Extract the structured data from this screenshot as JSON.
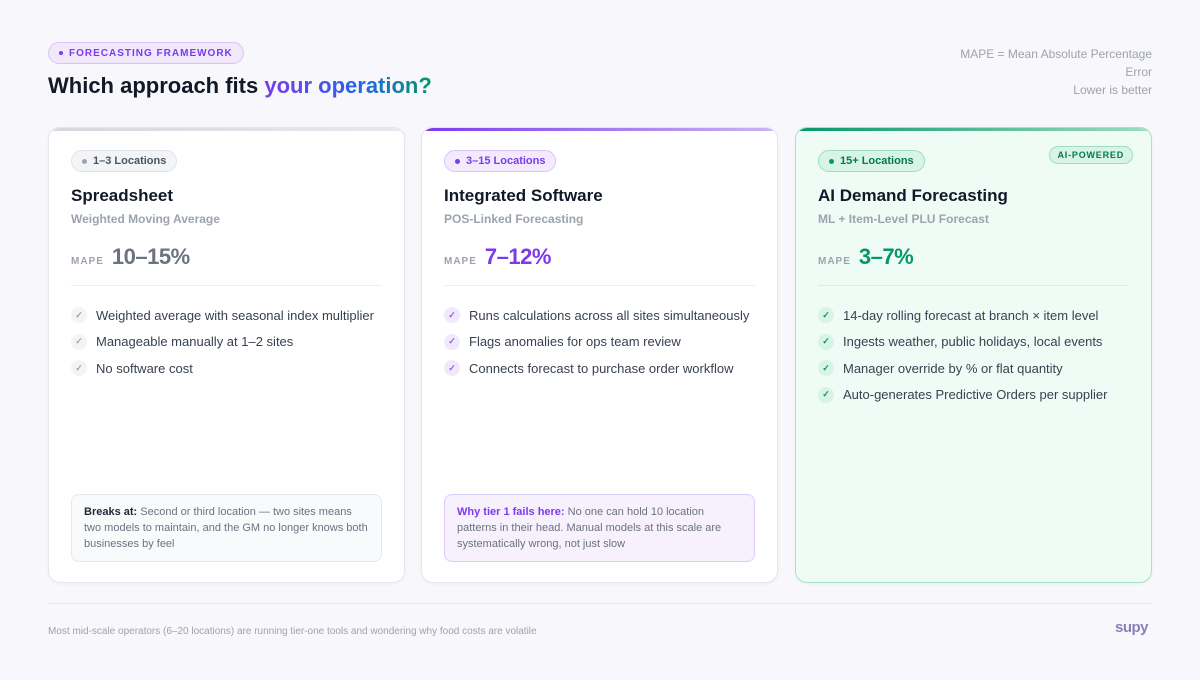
{
  "header": {
    "eyebrow": "FORECASTING FRAMEWORK",
    "title_main": "Which approach fits ",
    "title_accent": "your operation?",
    "note_line1": "MAPE = Mean Absolute Percentage Error",
    "note_line2": "Lower is better"
  },
  "cards": [
    {
      "tag": "1–3 Locations",
      "title": "Spreadsheet",
      "subtitle": "Weighted Moving Average",
      "mape_label": "MAPE",
      "mape_value": "10–15%",
      "features": [
        "Weighted average with seasonal index multiplier",
        "Manageable manually at 1–2 sites",
        "No software cost"
      ],
      "note_lead": "Breaks at:",
      "note_body": " Second or third location — two sites means two models to maintain, and the GM no longer knows both businesses by feel"
    },
    {
      "tag": "3–15 Locations",
      "title": "Integrated Software",
      "subtitle": "POS-Linked Forecasting",
      "mape_label": "MAPE",
      "mape_value": "7–12%",
      "features": [
        "Runs calculations across all sites simultaneously",
        "Flags anomalies for ops team review",
        "Connects forecast to purchase order workflow"
      ],
      "note_lead": "Why tier 1 fails here:",
      "note_body": " No one can hold 10 location patterns in their head. Manual models at this scale are systematically wrong, not just slow"
    },
    {
      "tag": "15+ Locations",
      "badge": "AI-POWERED",
      "title": "AI Demand Forecasting",
      "subtitle": "ML + Item-Level PLU Forecast",
      "mape_label": "MAPE",
      "mape_value": "3–7%",
      "features": [
        "14-day rolling forecast at branch × item level",
        "Ingests weather, public holidays, local events",
        "Manager override by % or flat quantity",
        "Auto-generates Predictive Orders per supplier"
      ]
    }
  ],
  "icons": {
    "check": "check-icon",
    "dot": "dot-icon"
  },
  "footer": {
    "text": "Most mid-scale operators (6–20 locations) are running tier-one tools and wondering why food costs are volatile",
    "logo": "supy"
  }
}
